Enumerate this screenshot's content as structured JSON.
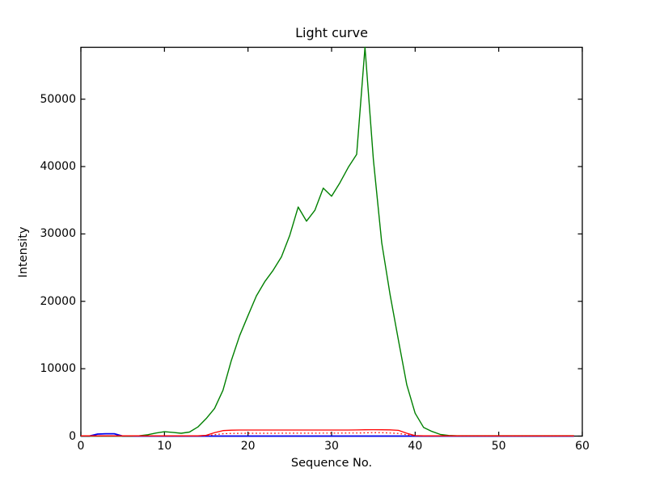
{
  "figure": {
    "background": "#ffffff",
    "frame_color": "#000000",
    "tick_style": "inward-all-sides"
  },
  "chart_data": {
    "type": "line",
    "title": "Light curve",
    "xlabel": "Sequence No.",
    "ylabel": "Intensity",
    "xlim": [
      0,
      60
    ],
    "ylim": [
      0,
      57700
    ],
    "xticks": [
      0,
      10,
      20,
      30,
      40,
      50,
      60
    ],
    "yticks": [
      0,
      10000,
      20000,
      30000,
      40000,
      50000
    ],
    "grid": false,
    "legend": false,
    "x": [
      0,
      1,
      2,
      3,
      4,
      5,
      6,
      7,
      8,
      9,
      10,
      11,
      12,
      13,
      14,
      15,
      16,
      17,
      18,
      19,
      20,
      21,
      22,
      23,
      24,
      25,
      26,
      27,
      28,
      29,
      30,
      31,
      32,
      33,
      34,
      35,
      36,
      37,
      38,
      39,
      40,
      41,
      42,
      43,
      44,
      45,
      46,
      47,
      48,
      49,
      50,
      51,
      52,
      53,
      54,
      55,
      56,
      57,
      58,
      59
    ],
    "series": [
      {
        "name": "blue-line",
        "color": "#0000ee",
        "line_style": "solid",
        "width": 1.8,
        "values": [
          0,
          0,
          300,
          350,
          350,
          0,
          0,
          0,
          0,
          0,
          0,
          0,
          0,
          0,
          0,
          0,
          0,
          0,
          0,
          0,
          0,
          0,
          0,
          0,
          0,
          0,
          0,
          0,
          0,
          0,
          0,
          0,
          0,
          0,
          0,
          0,
          0,
          0,
          0,
          0,
          0,
          0,
          0,
          0,
          0,
          0,
          0,
          0,
          0,
          0,
          0,
          0,
          0,
          0,
          0,
          0,
          0,
          0,
          0,
          0
        ]
      },
      {
        "name": "green-line",
        "color": "#008000",
        "line_style": "solid",
        "width": 1.4,
        "values": [
          0,
          0,
          0,
          0,
          0,
          0,
          0,
          50,
          200,
          450,
          650,
          550,
          420,
          600,
          1350,
          2600,
          4100,
          6800,
          11200,
          14900,
          17900,
          20800,
          22900,
          24600,
          26600,
          29800,
          34000,
          31900,
          33500,
          36800,
          35600,
          37600,
          39900,
          41800,
          57700,
          41000,
          28700,
          21000,
          14200,
          7600,
          3400,
          1300,
          700,
          250,
          100,
          50,
          50,
          50,
          50,
          50,
          50,
          50,
          50,
          50,
          50,
          50,
          50,
          50,
          50,
          50
        ]
      },
      {
        "name": "red-dotted-line",
        "color": "#ff0000",
        "line_style": "dotted",
        "width": 1.2,
        "values": [
          10,
          10,
          10,
          10,
          10,
          10,
          10,
          10,
          10,
          10,
          10,
          10,
          10,
          10,
          15,
          60,
          200,
          350,
          400,
          410,
          420,
          420,
          420,
          420,
          430,
          430,
          430,
          430,
          430,
          440,
          440,
          440,
          450,
          450,
          480,
          520,
          500,
          460,
          400,
          200,
          30,
          15,
          15,
          15,
          15,
          15,
          15,
          15,
          15,
          15,
          15,
          15,
          15,
          15,
          15,
          15,
          15,
          15,
          15,
          15
        ]
      },
      {
        "name": "red-line",
        "color": "#ff0000",
        "line_style": "solid",
        "width": 1.3,
        "values": [
          30,
          30,
          30,
          30,
          30,
          30,
          30,
          30,
          30,
          30,
          30,
          30,
          30,
          30,
          40,
          120,
          500,
          820,
          880,
          900,
          900,
          900,
          900,
          900,
          900,
          900,
          900,
          900,
          900,
          900,
          900,
          900,
          900,
          910,
          930,
          950,
          940,
          920,
          850,
          420,
          70,
          40,
          40,
          40,
          40,
          40,
          40,
          40,
          40,
          40,
          40,
          40,
          40,
          40,
          40,
          40,
          40,
          40,
          40,
          40
        ]
      }
    ]
  }
}
